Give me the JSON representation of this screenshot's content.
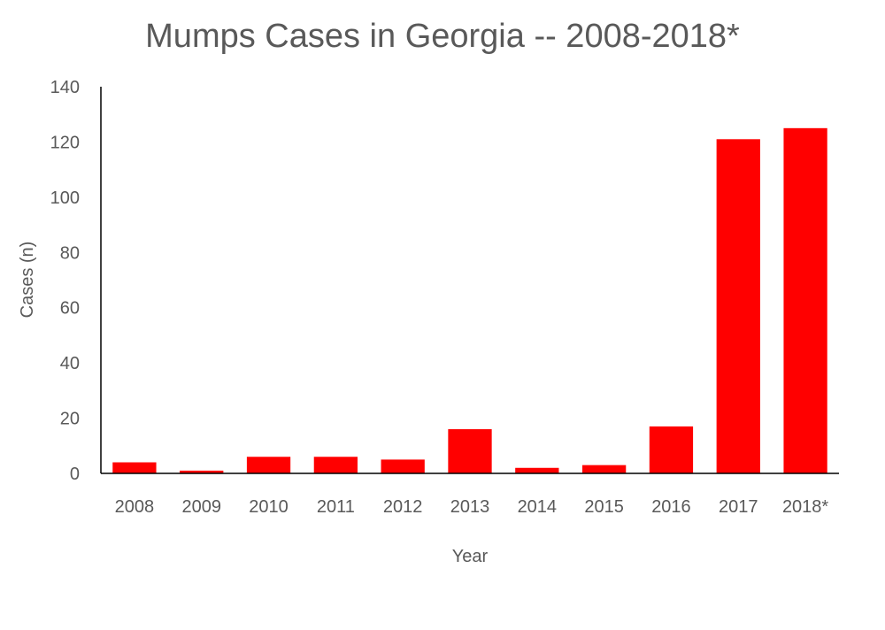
{
  "chart_data": {
    "type": "bar",
    "title": "Mumps Cases in Georgia -- 2008-2018*",
    "xlabel": "Year",
    "ylabel": "Cases (n)",
    "categories": [
      "2008",
      "2009",
      "2010",
      "2011",
      "2012",
      "2013",
      "2014",
      "2015",
      "2016",
      "2017",
      "2018*"
    ],
    "values": [
      4,
      1,
      6,
      6,
      5,
      16,
      2,
      3,
      17,
      121,
      125
    ],
    "ylim": [
      0,
      140
    ],
    "yticks": [
      0,
      20,
      40,
      60,
      80,
      100,
      120,
      140
    ],
    "bar_color": "#ff0000",
    "grid": false,
    "legend": "none"
  }
}
